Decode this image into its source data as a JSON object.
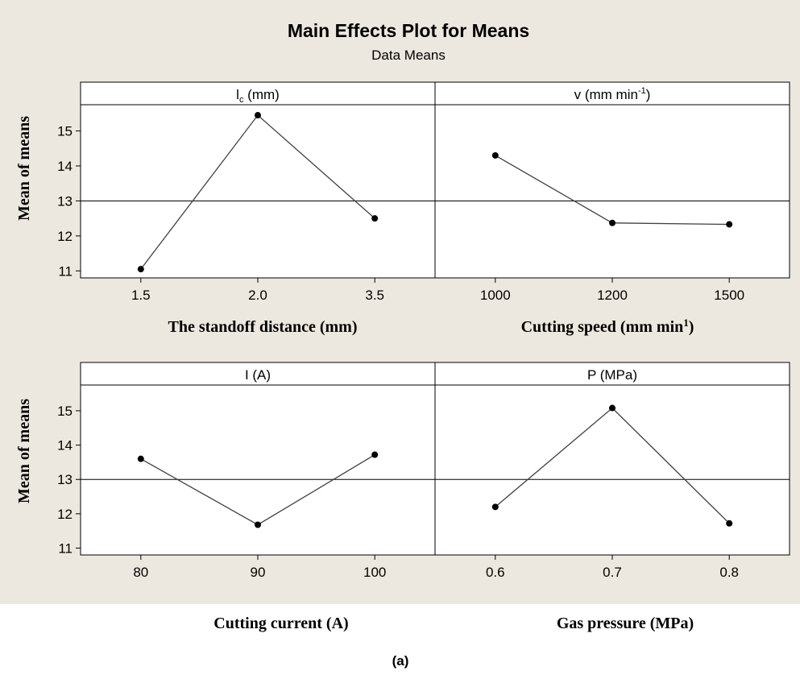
{
  "title": "Main Effects Plot for Means",
  "subtitle": "Data Means",
  "caption": "(a)",
  "colors": {
    "background": "#ede8df",
    "panel": "#ffffff",
    "line": "#404040",
    "marker": "#000000"
  },
  "chart_data": [
    {
      "type": "line",
      "panel_title": "l",
      "panel_title_sub": "c",
      "panel_title_rest": " (mm)",
      "xlabel": "The standoff distance (mm)",
      "ylabel": "Mean of means",
      "categories": [
        "1.5",
        "2.0",
        "3.5"
      ],
      "values": [
        11.05,
        15.45,
        12.5
      ],
      "ylim": [
        10.8,
        15.75
      ],
      "yticks": [
        11,
        12,
        13,
        14,
        15
      ],
      "reference_line": 13.0
    },
    {
      "type": "line",
      "panel_title": "v (mm min",
      "panel_title_sup": "-1",
      "panel_title_rest": ")",
      "xlabel": "Cutting speed (mm min",
      "xlabel_sup": "1",
      "xlabel_rest": ")",
      "categories": [
        "1000",
        "1200",
        "1500"
      ],
      "values": [
        14.3,
        12.37,
        12.33
      ],
      "ylim": [
        10.8,
        15.75
      ],
      "reference_line": 13.0
    },
    {
      "type": "line",
      "panel_title": "I (A)",
      "xlabel": "Cutting current (A)",
      "ylabel": "Mean of means",
      "categories": [
        "80",
        "90",
        "100"
      ],
      "values": [
        13.6,
        11.68,
        13.72
      ],
      "ylim": [
        10.8,
        15.75
      ],
      "yticks": [
        11,
        12,
        13,
        14,
        15
      ],
      "reference_line": 13.0
    },
    {
      "type": "line",
      "panel_title": "P (MPa)",
      "xlabel": "Gas pressure  (MPa)",
      "categories": [
        "0.6",
        "0.7",
        "0.8"
      ],
      "values": [
        12.2,
        15.08,
        11.72
      ],
      "ylim": [
        10.8,
        15.75
      ],
      "reference_line": 13.0
    }
  ]
}
